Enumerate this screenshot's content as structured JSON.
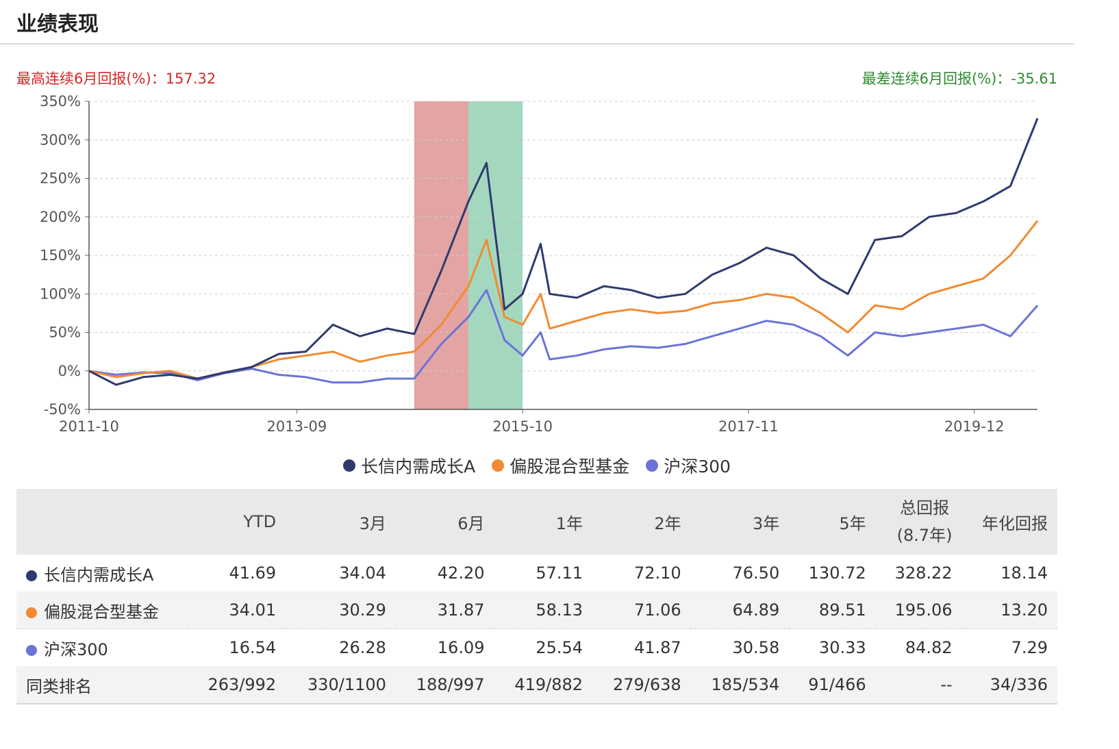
{
  "section_title": "业绩表现",
  "best_streak": "最高连续6月回报(%)：157.32",
  "worst_streak": "最差连续6月回报(%)：-35.61",
  "colors": {
    "fund": "#2e3a6e",
    "category": "#f28a30",
    "index": "#6b73d8",
    "best_band": "#e3a4a3",
    "worst_band": "#a3d8bf"
  },
  "chart_data": {
    "type": "line",
    "x_ticks": [
      "2011-10",
      "2013-09",
      "2015-10",
      "2017-11",
      "2019-12"
    ],
    "y_ticks": [
      "350%",
      "300%",
      "250%",
      "200%",
      "150%",
      "100%",
      "50%",
      "0%",
      "-50%"
    ],
    "ylim": [
      -50,
      350
    ],
    "grid": true,
    "legend_position": "bottom",
    "highlight_bands": [
      {
        "kind": "best_6m",
        "start": "2014-10",
        "end": "2015-04"
      },
      {
        "kind": "worst_6m",
        "start": "2015-04",
        "end": "2015-10"
      }
    ],
    "x": [
      "2011-10",
      "2012-01",
      "2012-04",
      "2012-07",
      "2012-10",
      "2013-01",
      "2013-04",
      "2013-07",
      "2013-10",
      "2014-01",
      "2014-04",
      "2014-07",
      "2014-10",
      "2015-01",
      "2015-04",
      "2015-06",
      "2015-08",
      "2015-10",
      "2015-12",
      "2016-01",
      "2016-04",
      "2016-07",
      "2016-10",
      "2017-01",
      "2017-04",
      "2017-07",
      "2017-10",
      "2018-01",
      "2018-04",
      "2018-07",
      "2018-10",
      "2019-01",
      "2019-04",
      "2019-07",
      "2019-10",
      "2020-01",
      "2020-04",
      "2020-07"
    ],
    "series": [
      {
        "name": "长信内需成长A",
        "color_key": "fund",
        "values": [
          0,
          -18,
          -8,
          -5,
          -10,
          -2,
          5,
          22,
          25,
          60,
          45,
          55,
          48,
          130,
          220,
          270,
          80,
          100,
          165,
          100,
          95,
          110,
          105,
          95,
          100,
          125,
          140,
          160,
          150,
          120,
          100,
          170,
          175,
          200,
          205,
          220,
          240,
          328
        ]
      },
      {
        "name": "偏股混合型基金",
        "color_key": "category",
        "values": [
          0,
          -8,
          -3,
          0,
          -10,
          -2,
          5,
          15,
          20,
          25,
          12,
          20,
          25,
          60,
          110,
          170,
          70,
          60,
          100,
          55,
          65,
          75,
          80,
          75,
          78,
          88,
          92,
          100,
          95,
          75,
          50,
          85,
          80,
          100,
          110,
          120,
          150,
          195
        ]
      },
      {
        "name": "沪深300",
        "color_key": "index",
        "values": [
          0,
          -5,
          -2,
          -3,
          -12,
          -3,
          3,
          -5,
          -8,
          -15,
          -15,
          -10,
          -10,
          35,
          70,
          105,
          40,
          20,
          50,
          15,
          20,
          28,
          32,
          30,
          35,
          45,
          55,
          65,
          60,
          45,
          20,
          50,
          45,
          50,
          55,
          60,
          45,
          85
        ]
      }
    ]
  },
  "table": {
    "headers": [
      "",
      "YTD",
      "3月",
      "6月",
      "1年",
      "2年",
      "3年",
      "5年",
      "总回报",
      "年化回报"
    ],
    "total_sub": "(8.7年)",
    "rows": [
      {
        "name": "长信内需成长A",
        "color_key": "fund",
        "cells": [
          "41.69",
          "34.04",
          "42.20",
          "57.11",
          "72.10",
          "76.50",
          "130.72",
          "328.22",
          "18.14"
        ]
      },
      {
        "name": "偏股混合型基金",
        "color_key": "category",
        "cells": [
          "34.01",
          "30.29",
          "31.87",
          "58.13",
          "71.06",
          "64.89",
          "89.51",
          "195.06",
          "13.20"
        ]
      },
      {
        "name": "沪深300",
        "color_key": "index",
        "cells": [
          "16.54",
          "26.28",
          "16.09",
          "25.54",
          "41.87",
          "30.58",
          "30.33",
          "84.82",
          "7.29"
        ]
      },
      {
        "name": "同类排名",
        "color_key": "",
        "cells": [
          "263/992",
          "330/1100",
          "188/997",
          "419/882",
          "279/638",
          "185/534",
          "91/466",
          "--",
          "34/336"
        ]
      }
    ]
  }
}
